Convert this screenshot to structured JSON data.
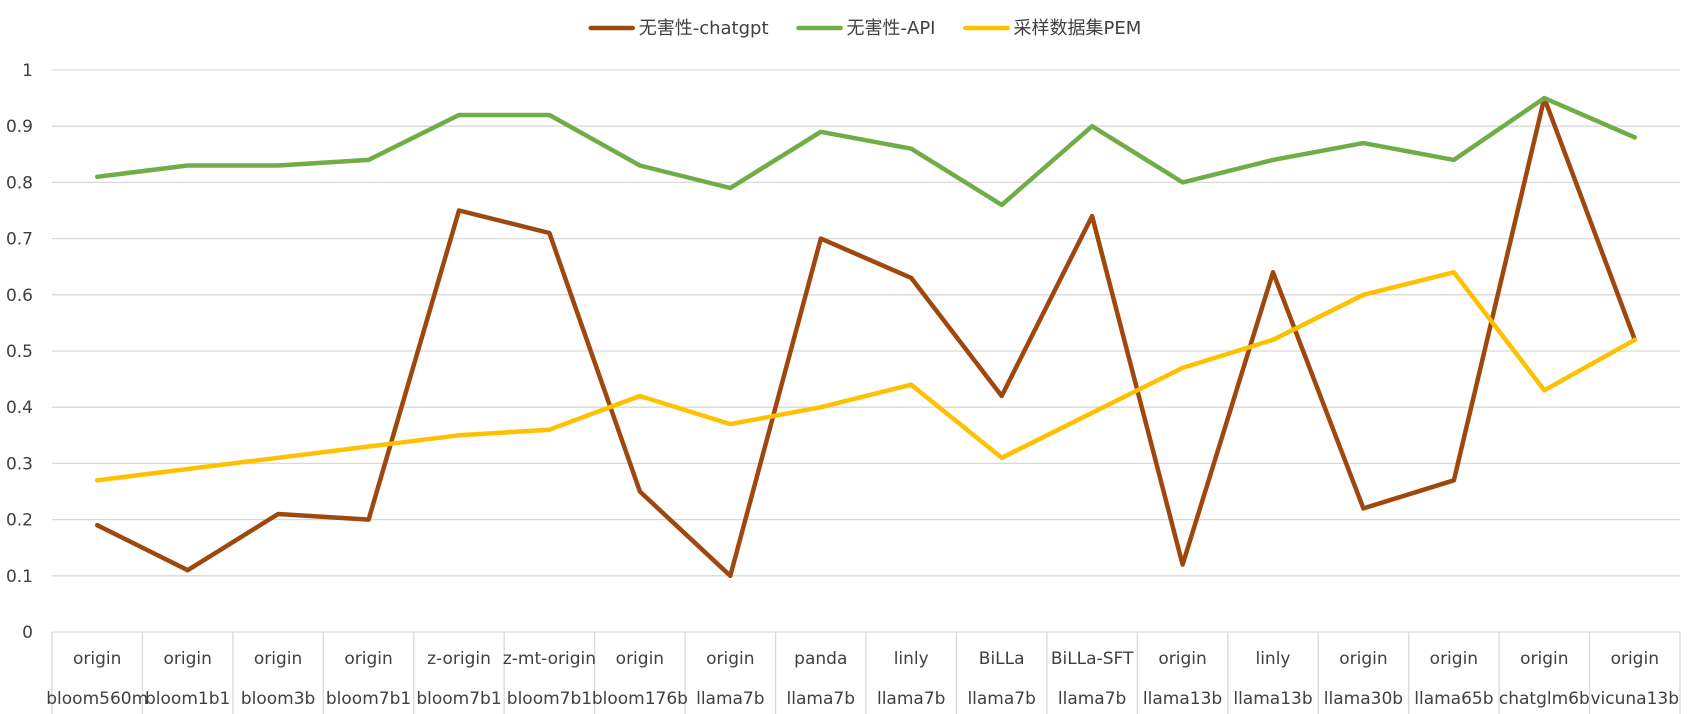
{
  "chart_data": {
    "type": "line",
    "title": "",
    "xlabel": "",
    "ylabel": "",
    "ylim": [
      0,
      1
    ],
    "yticks": [
      "0",
      "0.1",
      "0.2",
      "0.3",
      "0.4",
      "0.5",
      "0.6",
      "0.7",
      "0.8",
      "0.9",
      "1"
    ],
    "grid": true,
    "legend_position": "top",
    "categories": [
      {
        "group": "origin",
        "model": "bloom560m"
      },
      {
        "group": "origin",
        "model": "bloom1b1"
      },
      {
        "group": "origin",
        "model": "bloom3b"
      },
      {
        "group": "origin",
        "model": "bloom7b1"
      },
      {
        "group": "z-origin",
        "model": "bloom7b1"
      },
      {
        "group": "z-mt-origin",
        "model": "bloom7b1"
      },
      {
        "group": "origin",
        "model": "bloom176b"
      },
      {
        "group": "origin",
        "model": "llama7b"
      },
      {
        "group": "panda",
        "model": "llama7b"
      },
      {
        "group": "linly",
        "model": "llama7b"
      },
      {
        "group": "BiLLa",
        "model": "llama7b"
      },
      {
        "group": "BiLLa-SFT",
        "model": "llama7b"
      },
      {
        "group": "origin",
        "model": "llama13b"
      },
      {
        "group": "linly",
        "model": "llama13b"
      },
      {
        "group": "origin",
        "model": "llama30b"
      },
      {
        "group": "origin",
        "model": "llama65b"
      },
      {
        "group": "origin",
        "model": "chatglm6b"
      },
      {
        "group": "origin",
        "model": "vicuna13b"
      }
    ],
    "series": [
      {
        "name": "无害性-chatgpt",
        "color": "#9E480E",
        "values": [
          0.19,
          0.11,
          0.21,
          0.2,
          0.75,
          0.71,
          0.25,
          0.1,
          0.7,
          0.63,
          0.42,
          0.74,
          0.12,
          0.64,
          0.22,
          0.27,
          0.95,
          0.52
        ]
      },
      {
        "name": "无害性-API",
        "color": "#70AD47",
        "values": [
          0.81,
          0.83,
          0.83,
          0.84,
          0.92,
          0.92,
          0.83,
          0.79,
          0.89,
          0.86,
          0.76,
          0.9,
          0.8,
          0.84,
          0.87,
          0.84,
          0.95,
          0.88
        ]
      },
      {
        "name": "采样数据集PEM",
        "color": "#FFC000",
        "values": [
          0.27,
          0.29,
          0.31,
          0.33,
          0.35,
          0.36,
          0.42,
          0.37,
          0.4,
          0.44,
          0.31,
          0.39,
          0.47,
          0.52,
          0.6,
          0.64,
          0.43,
          0.52
        ]
      }
    ]
  }
}
